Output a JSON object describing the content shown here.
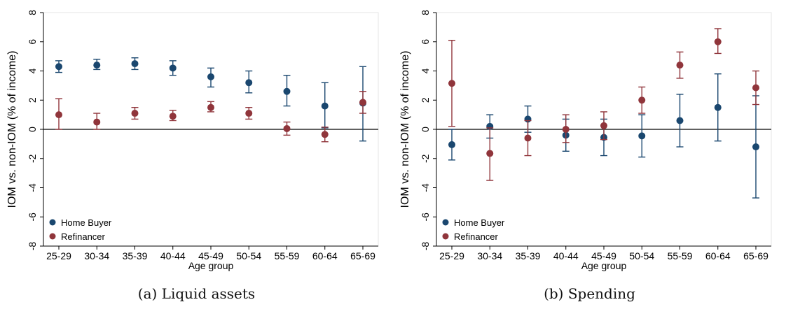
{
  "chart_data": [
    {
      "type": "scatter",
      "caption": "(a) Liquid assets",
      "xlabel": "Age group",
      "ylabel": "IOM vs. non-IOM (% of income)",
      "categories": [
        "25-29",
        "30-34",
        "35-39",
        "40-44",
        "45-49",
        "50-54",
        "55-59",
        "60-64",
        "65-69"
      ],
      "yticks": [
        "8",
        "6",
        "4",
        "2",
        "0",
        "-2",
        "-4",
        "-6",
        "-8"
      ],
      "ylim": [
        -8,
        8
      ],
      "reference_line": 0,
      "legend_position": "bottom-left",
      "series": [
        {
          "name": "Home Buyer",
          "color": "#1a476f",
          "values": [
            4.3,
            4.4,
            4.5,
            4.2,
            3.6,
            3.2,
            2.6,
            1.6,
            1.8
          ],
          "lower": [
            3.9,
            4.1,
            4.1,
            3.7,
            2.9,
            2.5,
            1.6,
            0.1,
            -0.8
          ],
          "upper": [
            4.7,
            4.8,
            4.9,
            4.7,
            4.2,
            4.0,
            3.7,
            3.2,
            4.3
          ]
        },
        {
          "name": "Refinancer",
          "color": "#90353b",
          "values": [
            1.0,
            0.5,
            1.1,
            0.9,
            1.5,
            1.1,
            0.05,
            -0.35,
            1.85
          ],
          "lower": [
            0.0,
            0.0,
            0.7,
            0.6,
            1.2,
            0.7,
            -0.4,
            -0.85,
            1.1
          ],
          "upper": [
            2.1,
            1.1,
            1.5,
            1.3,
            1.9,
            1.5,
            0.5,
            0.15,
            2.6
          ]
        }
      ]
    },
    {
      "type": "scatter",
      "caption": "(b) Spending",
      "xlabel": "Age group",
      "ylabel": "IOM vs. non-IOM (% of income)",
      "categories": [
        "25-29",
        "30-34",
        "35-39",
        "40-44",
        "45-49",
        "50-54",
        "55-59",
        "60-64",
        "65-69"
      ],
      "yticks": [
        "8",
        "6",
        "4",
        "2",
        "0",
        "-2",
        "-4",
        "-6",
        "-8"
      ],
      "ylim": [
        -8,
        8
      ],
      "reference_line": 0,
      "legend_position": "bottom-left",
      "series": [
        {
          "name": "Home Buyer",
          "color": "#1a476f",
          "values": [
            -1.05,
            0.2,
            0.7,
            -0.4,
            -0.55,
            -0.45,
            0.6,
            1.5,
            -1.2
          ],
          "lower": [
            -2.1,
            -0.6,
            -0.2,
            -1.5,
            -1.8,
            -1.9,
            -1.2,
            -0.8,
            -4.7
          ],
          "upper": [
            0.0,
            1.0,
            1.6,
            0.7,
            0.7,
            1.0,
            2.4,
            3.8,
            2.3
          ]
        },
        {
          "name": "Refinancer",
          "color": "#90353b",
          "values": [
            3.15,
            -1.65,
            -0.6,
            0.0,
            0.25,
            2.0,
            4.4,
            6.0,
            2.85
          ],
          "lower": [
            0.2,
            -3.5,
            -1.8,
            -0.9,
            -0.7,
            1.1,
            3.5,
            5.2,
            1.7
          ],
          "upper": [
            6.1,
            0.1,
            0.6,
            1.0,
            1.2,
            2.9,
            5.3,
            6.9,
            4.0
          ]
        }
      ]
    }
  ]
}
